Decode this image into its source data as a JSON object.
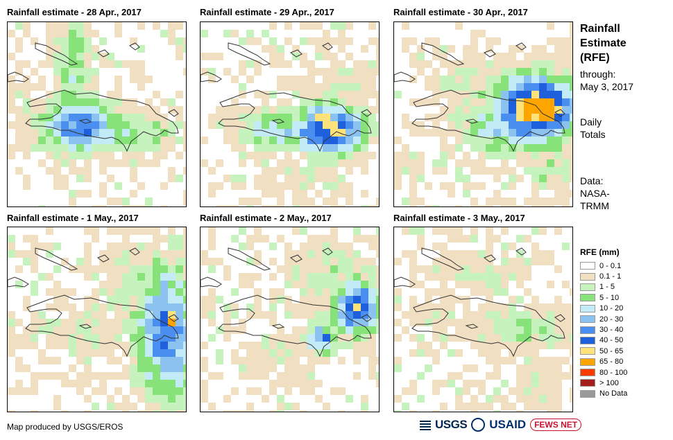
{
  "panels": [
    {
      "title": "Rainfall estimate - 28 Apr., 2017",
      "seed": 11,
      "blobs": [
        [
          95,
          60,
          28,
          90,
          3.0
        ],
        [
          105,
          150,
          55,
          38,
          6.5
        ],
        [
          160,
          160,
          80,
          28,
          3.5
        ],
        [
          70,
          170,
          40,
          18,
          2.6
        ],
        [
          20,
          120,
          40,
          40,
          1.2
        ]
      ]
    },
    {
      "title": "Rainfall estimate - 29 Apr., 2017",
      "seed": 23,
      "blobs": [
        [
          185,
          155,
          55,
          35,
          8.0
        ],
        [
          115,
          155,
          60,
          30,
          4.2
        ],
        [
          175,
          135,
          20,
          12,
          8.8
        ],
        [
          200,
          95,
          60,
          60,
          1.6
        ],
        [
          140,
          230,
          60,
          30,
          1.3
        ]
      ]
    },
    {
      "title": "Rainfall estimate - 30 Apr., 2017",
      "seed": 37,
      "blobs": [
        [
          205,
          125,
          60,
          50,
          9.3
        ],
        [
          185,
          150,
          90,
          40,
          5.0
        ],
        [
          140,
          90,
          80,
          40,
          2.2
        ],
        [
          225,
          215,
          40,
          40,
          2.0
        ],
        [
          20,
          200,
          30,
          30,
          1.1
        ]
      ]
    },
    {
      "title": "Rainfall estimate - 1 May., 2017",
      "seed": 51,
      "blobs": [
        [
          230,
          150,
          45,
          95,
          6.4
        ],
        [
          235,
          135,
          20,
          25,
          8.9
        ],
        [
          220,
          175,
          20,
          20,
          7.8
        ],
        [
          185,
          90,
          50,
          70,
          2.2
        ],
        [
          110,
          150,
          100,
          40,
          1.6
        ]
      ]
    },
    {
      "title": "Rainfall estimate - 2 May., 2017",
      "seed": 67,
      "blobs": [
        [
          225,
          115,
          35,
          40,
          7.4
        ],
        [
          175,
          160,
          25,
          25,
          5.0
        ],
        [
          178,
          157,
          8,
          8,
          8.8
        ],
        [
          195,
          75,
          80,
          60,
          2.0
        ],
        [
          110,
          180,
          60,
          40,
          1.3
        ]
      ]
    },
    {
      "title": "Rainfall estimate - 3 May., 2017",
      "seed": 79,
      "blobs": [
        [
          185,
          145,
          75,
          35,
          2.5
        ],
        [
          120,
          70,
          70,
          40,
          1.6
        ],
        [
          60,
          130,
          40,
          30,
          1.3
        ],
        [
          200,
          235,
          40,
          30,
          1.2
        ]
      ]
    }
  ],
  "sidebar": {
    "title_lines": [
      "Rainfall",
      "Estimate",
      "(RFE)"
    ],
    "through_lines": [
      "through:",
      "May 3, 2017"
    ],
    "totals_lines": [
      "Daily",
      "Totals"
    ],
    "data_lines": [
      "Data:",
      "NASA-",
      "TRMM"
    ]
  },
  "legend": {
    "title": "RFE (mm)",
    "items": [
      {
        "label": "0 - 0.1",
        "color": "#ffffff"
      },
      {
        "label": "0.1 - 1",
        "color": "#f1dfc2"
      },
      {
        "label": "1 - 5",
        "color": "#c6f2bd"
      },
      {
        "label": "5 - 10",
        "color": "#86e279"
      },
      {
        "label": "10 - 20",
        "color": "#c3ebf7"
      },
      {
        "label": "20 - 30",
        "color": "#8cc2ef"
      },
      {
        "label": "30 - 40",
        "color": "#4a8ff0"
      },
      {
        "label": "40 - 50",
        "color": "#1e5fdb"
      },
      {
        "label": "50 - 65",
        "color": "#ffe37a"
      },
      {
        "label": "65 - 80",
        "color": "#ffa500"
      },
      {
        "label": "80 - 100",
        "color": "#ff3c00"
      },
      {
        "label": "> 100",
        "color": "#a61d1d"
      },
      {
        "label": "No Data",
        "color": "#9a9a9a"
      }
    ]
  },
  "credit": "Map produced by USGS/EROS",
  "logos": {
    "usgs": "USGS",
    "usaid": "USAID",
    "fews": "FEWS NET"
  }
}
